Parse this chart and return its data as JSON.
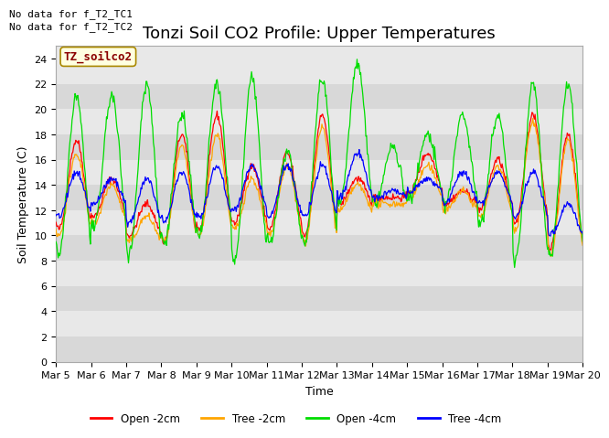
{
  "title": "Tonzi Soil CO2 Profile: Upper Temperatures",
  "ylabel": "Soil Temperature (C)",
  "xlabel": "Time",
  "ylim": [
    0,
    25
  ],
  "yticks": [
    0,
    2,
    4,
    6,
    8,
    10,
    12,
    14,
    16,
    18,
    20,
    22,
    24
  ],
  "xtick_labels": [
    "Mar 5",
    "Mar 6",
    "Mar 7",
    "Mar 8",
    "Mar 9",
    "Mar 10",
    "Mar 11",
    "Mar 12",
    "Mar 13",
    "Mar 14",
    "Mar 15",
    "Mar 16",
    "Mar 17",
    "Mar 18",
    "Mar 19",
    "Mar 20"
  ],
  "note1": "No data for f_T2_TC1",
  "note2": "No data for f_T2_TC2",
  "legend_title": "TZ_soilco2",
  "legend_entries": [
    "Open -2cm",
    "Tree -2cm",
    "Open -4cm",
    "Tree -4cm"
  ],
  "line_colors": [
    "#FF0000",
    "#FFA500",
    "#00DD00",
    "#0000FF"
  ],
  "bg_color": "#FFFFFF",
  "plot_bg_light": "#E8E8E8",
  "plot_bg_dark": "#D8D8D8",
  "title_fontsize": 13,
  "axis_fontsize": 9,
  "tick_fontsize": 8,
  "days": 15,
  "open2_peaks": [
    17.5,
    14.5,
    12.5,
    18.0,
    19.5,
    15.5,
    16.5,
    19.5,
    14.5,
    13.0,
    16.5,
    13.5,
    16.0,
    19.5,
    18.0
  ],
  "open2_troughs": [
    10.5,
    11.5,
    10.0,
    9.5,
    10.5,
    11.0,
    10.5,
    10.0,
    12.5,
    13.0,
    13.5,
    12.5,
    12.0,
    11.0,
    9.0
  ],
  "tree2_peaks": [
    16.5,
    14.0,
    11.5,
    17.0,
    18.0,
    14.5,
    15.5,
    18.5,
    14.0,
    12.5,
    15.5,
    13.5,
    15.5,
    19.0,
    17.5
  ],
  "tree2_troughs": [
    10.0,
    11.0,
    9.5,
    9.5,
    10.0,
    10.5,
    10.0,
    9.5,
    12.0,
    12.5,
    13.0,
    12.0,
    11.5,
    10.5,
    8.5
  ],
  "open4_peaks": [
    21.0,
    21.0,
    22.0,
    19.5,
    22.0,
    22.5,
    16.5,
    22.5,
    23.5,
    17.0,
    18.0,
    19.5,
    19.5,
    22.0,
    22.0
  ],
  "open4_troughs": [
    8.5,
    10.5,
    8.5,
    9.5,
    10.0,
    8.0,
    9.5,
    9.5,
    12.5,
    12.5,
    13.0,
    12.5,
    11.0,
    8.0,
    8.5
  ],
  "tree4_peaks": [
    15.0,
    14.5,
    14.5,
    15.0,
    15.5,
    15.5,
    15.5,
    15.5,
    16.5,
    13.5,
    14.5,
    15.0,
    15.0,
    15.0,
    12.5
  ],
  "tree4_troughs": [
    11.5,
    12.5,
    11.0,
    11.0,
    11.5,
    12.0,
    11.5,
    11.5,
    13.0,
    13.0,
    13.5,
    12.5,
    12.5,
    11.5,
    10.0
  ]
}
